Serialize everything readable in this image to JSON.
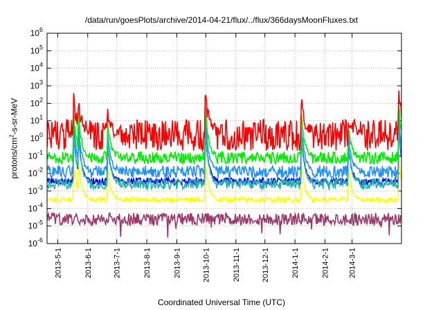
{
  "chart_data": {
    "type": "line",
    "title": "/data/run/goesPlots/archive/2014-04-21/flux/../flux/366daysMoonFluxes.txt",
    "xlabel": "Coordinated Universal Time (UTC)",
    "ylabel": "protons/cm2-s-sr-MeV",
    "ylabel_parts": {
      "pre": "protons/cm",
      "sup": "2",
      "post": "-s-sr-MeV"
    },
    "xlim": [
      "2013-04-20",
      "2014-04-21"
    ],
    "ylim": [
      1e-06,
      1000000.0
    ],
    "y_scale": "log",
    "grid": true,
    "x_tick_labels": [
      "2013-5-1",
      "2013-6-1",
      "2013-7-1",
      "2013-8-1",
      "2013-9-1",
      "2013-10-1",
      "2013-11-1",
      "2013-12-1",
      "2014-1-1",
      "2014-2-1",
      "2014-3-1"
    ],
    "y_tick_labels": [
      {
        "base": "10",
        "exp": "-6"
      },
      {
        "base": "10",
        "exp": "-5"
      },
      {
        "base": "10",
        "exp": "-4"
      },
      {
        "base": "10",
        "exp": "-3"
      },
      {
        "base": "10",
        "exp": "-2"
      },
      {
        "base": "10",
        "exp": "-1"
      },
      {
        "base": "10",
        "exp": "0"
      },
      {
        "base": "10",
        "exp": "1"
      },
      {
        "base": "10",
        "exp": "2"
      },
      {
        "base": "10",
        "exp": "3"
      },
      {
        "base": "10",
        "exp": "4"
      },
      {
        "base": "10",
        "exp": "5"
      },
      {
        "base": "10",
        "exp": "6"
      }
    ],
    "events": [
      {
        "date": "2013-05-17",
        "peak_log10": 2.5
      },
      {
        "date": "2013-05-22",
        "peak_log10": 2.4
      },
      {
        "date": "2013-06-21",
        "peak_log10": 1.6
      },
      {
        "date": "2013-09-30",
        "peak_log10": 3.0
      },
      {
        "date": "2014-01-07",
        "peak_log10": 2.5
      },
      {
        "date": "2014-02-25",
        "peak_log10": 1.1
      },
      {
        "date": "2014-04-18",
        "peak_log10": 3.0
      }
    ],
    "series": [
      {
        "color": "#ff0000",
        "baseline_log10": 0.2,
        "noise": 0.9,
        "event_scale": 1.0
      },
      {
        "color": "#00ee00",
        "baseline_log10": -1.1,
        "noise": 0.35,
        "event_scale": 0.8
      },
      {
        "color": "#1e90ff",
        "baseline_log10": -1.9,
        "noise": 0.35,
        "event_scale": 0.7
      },
      {
        "color": "#20b2aa",
        "baseline_log10": -2.6,
        "noise": 0.3,
        "event_scale": 0.65
      },
      {
        "color": "#0000ff",
        "baseline_log10": -2.45,
        "noise": 0.2,
        "event_scale": 0.6
      },
      {
        "color": "#ffff00",
        "baseline_log10": -3.5,
        "noise": 0.15,
        "event_scale": 0.4
      },
      {
        "color": "#9b3a6a",
        "baseline_log10": -4.6,
        "noise": 0.35,
        "event_scale": 0.0
      }
    ]
  }
}
